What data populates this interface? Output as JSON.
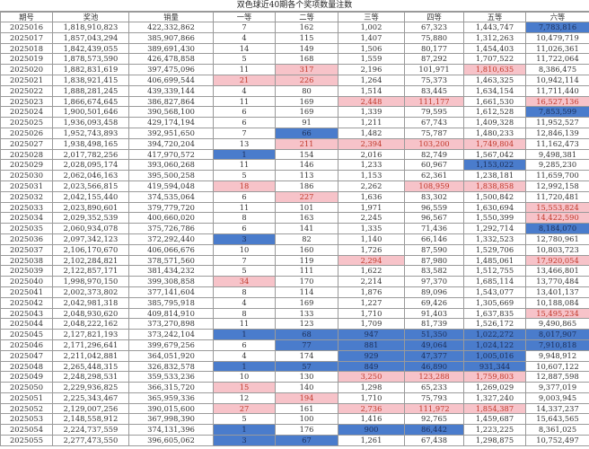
{
  "title": "双色球近40期各个奖项数量注数",
  "colors": {
    "high": "#f7c3c9",
    "low": "#4a7ccc"
  },
  "headers": [
    "期号",
    "奖池",
    "销量",
    "一等",
    "二等",
    "三等",
    "四等",
    "五等",
    "六等"
  ],
  "rows": [
    {
      "c": [
        "2025016",
        "1,818,910,823",
        "422,332,862",
        "7",
        "162",
        "1,002",
        "67,323",
        "1,443,747",
        "7,783,816"
      ],
      "m": ".....l"
    },
    {
      "c": [
        "2025017",
        "1,857,043,294",
        "385,907,866",
        "4",
        "115",
        "1,407",
        "75,880",
        "1,312,263",
        "10,479,719"
      ],
      "m": "......"
    },
    {
      "c": [
        "2025018",
        "1,842,439,055",
        "389,691,430",
        "14",
        "149",
        "1,506",
        "80,177",
        "1,454,403",
        "11,026,361"
      ],
      "m": "......"
    },
    {
      "c": [
        "2025019",
        "1,878,573,590",
        "426,478,858",
        "5",
        "168",
        "1,559",
        "87,292",
        "1,707,522",
        "11,722,064"
      ],
      "m": "......"
    },
    {
      "c": [
        "2025020",
        "1,882,831,619",
        "397,475,096",
        "11",
        "317",
        "2,196",
        "101,971",
        "1,810,635",
        "8,386,475"
      ],
      "m": ".h..h."
    },
    {
      "c": [
        "2025021",
        "1,838,921,415",
        "406,699,544",
        "21",
        "226",
        "1,264",
        "75,373",
        "1,463,325",
        "10,942,114"
      ],
      "m": "hh...."
    },
    {
      "c": [
        "2025022",
        "1,888,281,245",
        "439,339,144",
        "4",
        "80",
        "1,514",
        "83,445",
        "1,634,154",
        "11,711,440"
      ],
      "m": "......"
    },
    {
      "c": [
        "2025023",
        "1,866,674,645",
        "386,827,864",
        "11",
        "169",
        "2,448",
        "111,177",
        "1,661,530",
        "16,527,136"
      ],
      "m": "..hh.h"
    },
    {
      "c": [
        "2025024",
        "1,900,501,646",
        "390,568,100",
        "6",
        "169",
        "1,339",
        "79,595",
        "1,612,528",
        "7,853,599"
      ],
      "m": ".....l"
    },
    {
      "c": [
        "2025025",
        "1,936,093,458",
        "429,174,194",
        "6",
        "91",
        "1,211",
        "67,743",
        "1,409,328",
        "11,952,527"
      ],
      "m": "......"
    },
    {
      "c": [
        "2025026",
        "1,952,743,893",
        "392,951,650",
        "7",
        "66",
        "1,482",
        "75,787",
        "1,480,233",
        "12,846,139"
      ],
      "m": ".l...."
    },
    {
      "c": [
        "2025027",
        "1,938,498,165",
        "394,720,204",
        "13",
        "211",
        "2,394",
        "103,200",
        "1,749,804",
        "11,162,473"
      ],
      "m": ".hhhh."
    },
    {
      "c": [
        "2025028",
        "2,017,782,256",
        "417,970,572",
        "1",
        "154",
        "2,016",
        "82,749",
        "1,567,042",
        "9,498,381"
      ],
      "m": "l....."
    },
    {
      "c": [
        "2025029",
        "2,028,095,174",
        "393,060,268",
        "11",
        "146",
        "1,233",
        "60,967",
        "1,153,022",
        "9,285,230"
      ],
      "m": "....l."
    },
    {
      "c": [
        "2025030",
        "2,062,046,163",
        "395,500,258",
        "5",
        "113",
        "1,153",
        "62,361",
        "1,238,181",
        "11,659,700"
      ],
      "m": "......"
    },
    {
      "c": [
        "2025031",
        "2,023,566,815",
        "419,594,048",
        "18",
        "186",
        "2,262",
        "108,959",
        "1,838,858",
        "12,992,158"
      ],
      "m": "h..hh."
    },
    {
      "c": [
        "2025032",
        "2,042,155,440",
        "374,535,064",
        "6",
        "227",
        "1,636",
        "83,302",
        "1,500,842",
        "11,720,481"
      ],
      "m": ".h...."
    },
    {
      "c": [
        "2025033",
        "2,023,890,601",
        "379,779,720",
        "11",
        "101",
        "1,971",
        "96,559",
        "1,630,694",
        "15,553,824"
      ],
      "m": ".....h"
    },
    {
      "c": [
        "2025034",
        "2,029,352,539",
        "400,660,020",
        "8",
        "163",
        "2,245",
        "96,567",
        "1,550,399",
        "14,422,590"
      ],
      "m": ".....h"
    },
    {
      "c": [
        "2025035",
        "2,060,934,078",
        "375,726,786",
        "6",
        "141",
        "1,335",
        "71,436",
        "1,292,714",
        "8,184,070"
      ],
      "m": ".....l"
    },
    {
      "c": [
        "2025036",
        "2,097,342,123",
        "372,292,440",
        "3",
        "82",
        "1,140",
        "66,146",
        "1,332,523",
        "12,780,961"
      ],
      "m": "l....."
    },
    {
      "c": [
        "2025037",
        "2,106,170,670",
        "406,066,676",
        "10",
        "160",
        "1,726",
        "87,590",
        "1,529,706",
        "10,803,723"
      ],
      "m": "......"
    },
    {
      "c": [
        "2025038",
        "2,102,284,821",
        "378,571,560",
        "7",
        "119",
        "2,294",
        "87,980",
        "1,485,061",
        "17,920,054"
      ],
      "m": "..h..h"
    },
    {
      "c": [
        "2025039",
        "2,122,857,171",
        "381,434,232",
        "5",
        "111",
        "1,622",
        "83,582",
        "1,512,755",
        "13,466,801"
      ],
      "m": "......"
    },
    {
      "c": [
        "2025040",
        "1,998,970,150",
        "399,308,858",
        "34",
        "170",
        "2,214",
        "97,370",
        "1,685,114",
        "13,770,484"
      ],
      "m": "h....."
    },
    {
      "c": [
        "2025041",
        "2,002,373,802",
        "377,141,604",
        "8",
        "114",
        "1,876",
        "89,096",
        "1,543,077",
        "13,401,137"
      ],
      "m": "......"
    },
    {
      "c": [
        "2025042",
        "2,042,981,318",
        "385,795,918",
        "4",
        "169",
        "1,227",
        "69,426",
        "1,305,669",
        "10,188,084"
      ],
      "m": "......"
    },
    {
      "c": [
        "2025043",
        "2,048,930,620",
        "409,814,910",
        "8",
        "133",
        "1,710",
        "91,403",
        "1,637,835",
        "15,495,234"
      ],
      "m": ".....h"
    },
    {
      "c": [
        "2025044",
        "2,048,222,162",
        "373,270,898",
        "11",
        "123",
        "1,709",
        "81,739",
        "1,526,172",
        "9,490,865"
      ],
      "m": "......"
    },
    {
      "c": [
        "2025045",
        "2,127,821,193",
        "373,242,104",
        "1",
        "68",
        "947",
        "51,350",
        "1,022,272",
        "8,017,907"
      ],
      "m": "llllll"
    },
    {
      "c": [
        "2025046",
        "2,171,296,641",
        "399,679,256",
        "6",
        "77",
        "881",
        "49,064",
        "1,024,122",
        "7,910,818"
      ],
      "m": ".lllll"
    },
    {
      "c": [
        "2025047",
        "2,211,042,881",
        "364,051,920",
        "4",
        "174",
        "929",
        "47,377",
        "1,005,016",
        "9,948,912"
      ],
      "m": "..lll."
    },
    {
      "c": [
        "2025048",
        "2,265,448,315",
        "326,832,578",
        "1",
        "57",
        "849",
        "46,890",
        "931,344",
        "10,607,122"
      ],
      "m": "lllll."
    },
    {
      "c": [
        "2025049",
        "2,248,298,531",
        "359,533,236",
        "10",
        "130",
        "3,250",
        "123,288",
        "1,759,803",
        "12,887,598"
      ],
      "m": "..hhh."
    },
    {
      "c": [
        "2025050",
        "2,229,936,825",
        "366,315,720",
        "15",
        "140",
        "1,298",
        "65,233",
        "1,269,029",
        "9,377,019"
      ],
      "m": "h....."
    },
    {
      "c": [
        "2025051",
        "2,225,343,467",
        "365,959,336",
        "12",
        "194",
        "1,710",
        "75,793",
        "1,327,240",
        "9,003,945"
      ],
      "m": ".h...."
    },
    {
      "c": [
        "2025052",
        "2,129,007,256",
        "390,015,600",
        "27",
        "161",
        "2,736",
        "111,972",
        "1,854,387",
        "14,337,237"
      ],
      "m": "h.hhh."
    },
    {
      "c": [
        "2025053",
        "2,148,558,912",
        "367,998,390",
        "5",
        "100",
        "1,416",
        "92,765",
        "1,459,687",
        "15,643,565"
      ],
      "m": "......"
    },
    {
      "c": [
        "2025054",
        "2,224,737,559",
        "374,131,396",
        "1",
        "176",
        "900",
        "86,442",
        "1,223,225",
        "8,361,025"
      ],
      "m": "l.ll.."
    },
    {
      "c": [
        "2025055",
        "2,277,473,550",
        "396,605,062",
        "3",
        "67",
        "1,261",
        "67,438",
        "1,298,875",
        "10,752,497"
      ],
      "m": "ll...."
    }
  ],
  "watermark": "@烽火数说"
}
